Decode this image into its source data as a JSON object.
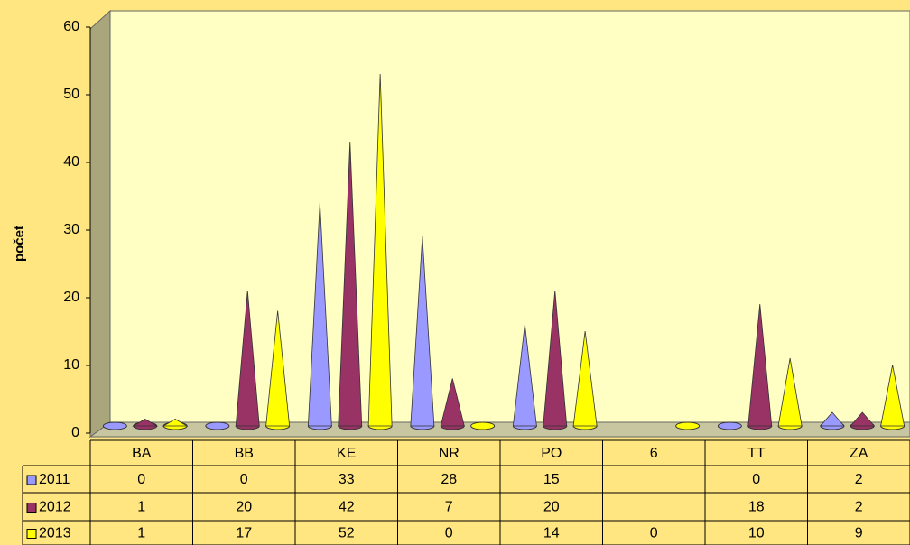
{
  "chart_data": {
    "type": "cone3d",
    "y_label": "počet",
    "categories": [
      "BA",
      "BB",
      "KE",
      "NR",
      "PO",
      "6",
      "TT",
      "ZA"
    ],
    "series": [
      {
        "name": "2011",
        "color": "#9999ff",
        "values": [
          0,
          0,
          33,
          28,
          15,
          null,
          0,
          2
        ]
      },
      {
        "name": "2012",
        "color": "#993366",
        "values": [
          1,
          20,
          42,
          7,
          20,
          null,
          18,
          2
        ]
      },
      {
        "name": "2013",
        "color": "#ffff00",
        "values": [
          1,
          17,
          52,
          0,
          14,
          0,
          10,
          9
        ]
      }
    ],
    "ylim": [
      0,
      60
    ],
    "yticks": [
      0,
      10,
      20,
      30,
      40,
      50,
      60
    ],
    "grid": false,
    "data_table": true
  }
}
